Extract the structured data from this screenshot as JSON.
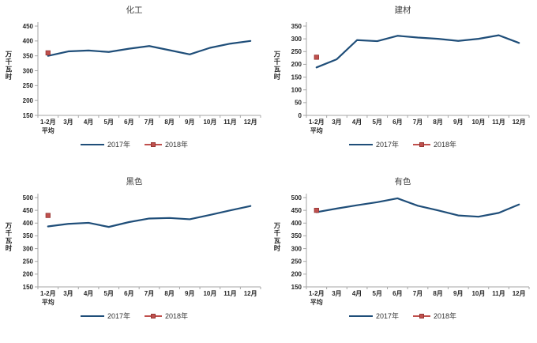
{
  "colors": {
    "line_2017": "#1f4e79",
    "marker_2018": "#c0504d",
    "marker_border": "#953735",
    "axis": "#a6a6a6",
    "text": "#262626"
  },
  "chart_data": [
    {
      "type": "line",
      "title": "化工",
      "ylabel": "万千瓦时",
      "xlabel": "",
      "ylim": [
        150,
        450
      ],
      "yticks": [
        150,
        200,
        250,
        300,
        350,
        400,
        450
      ],
      "grid": false,
      "legend_position": "bottom",
      "categories": [
        "1-2月\n平均",
        "3月",
        "4月",
        "5月",
        "6月",
        "7月",
        "8月",
        "9月",
        "10月",
        "11月",
        "12月"
      ],
      "series": [
        {
          "name": "2017年",
          "style": "line",
          "values": [
            350,
            365,
            368,
            363,
            374,
            383,
            369,
            355,
            377,
            391,
            400
          ]
        },
        {
          "name": "2018年",
          "style": "markers",
          "values": [
            360
          ]
        }
      ]
    },
    {
      "type": "line",
      "title": "建材",
      "ylabel": "万千瓦时",
      "xlabel": "",
      "ylim": [
        0,
        350
      ],
      "yticks": [
        0,
        50,
        100,
        150,
        200,
        250,
        300,
        350
      ],
      "grid": false,
      "legend_position": "bottom",
      "categories": [
        "1-2月\n平均",
        "3月",
        "4月",
        "5月",
        "6月",
        "7月",
        "8月",
        "9月",
        "10月",
        "11月",
        "12月"
      ],
      "series": [
        {
          "name": "2017年",
          "style": "line",
          "values": [
            188,
            220,
            295,
            291,
            312,
            305,
            300,
            292,
            300,
            314,
            284
          ]
        },
        {
          "name": "2018年",
          "style": "markers",
          "values": [
            228
          ]
        }
      ]
    },
    {
      "type": "line",
      "title": "黑色",
      "ylabel": "万千瓦时",
      "xlabel": "",
      "ylim": [
        150,
        500
      ],
      "yticks": [
        150,
        200,
        250,
        300,
        350,
        400,
        450,
        500
      ],
      "grid": false,
      "legend_position": "bottom",
      "categories": [
        "1-2月\n平均",
        "3月",
        "4月",
        "5月",
        "6月",
        "7月",
        "8月",
        "9月",
        "10月",
        "11月",
        "12月"
      ],
      "series": [
        {
          "name": "2017年",
          "style": "line",
          "values": [
            387,
            397,
            401,
            385,
            404,
            418,
            420,
            415,
            432,
            450,
            467
          ]
        },
        {
          "name": "2018年",
          "style": "markers",
          "values": [
            430
          ]
        }
      ]
    },
    {
      "type": "line",
      "title": "有色",
      "ylabel": "万千瓦时",
      "xlabel": "",
      "ylim": [
        150,
        500
      ],
      "yticks": [
        150,
        200,
        250,
        300,
        350,
        400,
        450,
        500
      ],
      "grid": false,
      "legend_position": "bottom",
      "categories": [
        "1-2月\n平均",
        "3月",
        "4月",
        "5月",
        "6月",
        "7月",
        "8月",
        "9月",
        "10月",
        "11月",
        "12月"
      ],
      "series": [
        {
          "name": "2017年",
          "style": "line",
          "values": [
            443,
            457,
            470,
            482,
            497,
            468,
            450,
            430,
            425,
            440,
            473
          ]
        },
        {
          "name": "2018年",
          "style": "markers",
          "values": [
            450
          ]
        }
      ]
    }
  ]
}
